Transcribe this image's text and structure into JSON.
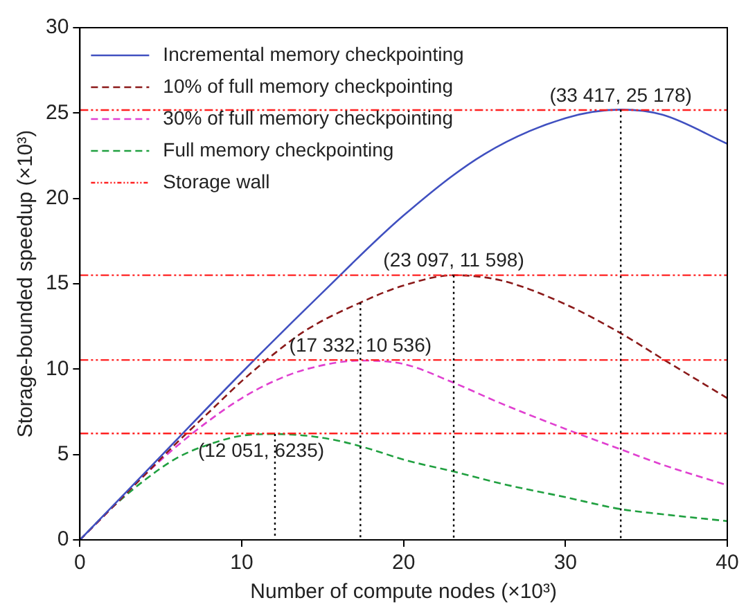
{
  "chart_data": {
    "type": "line",
    "xlabel": "Number of compute nodes (×10³)",
    "ylabel": "Storage-bounded speedup (×10³)",
    "xlim": [
      0,
      40
    ],
    "ylim": [
      0,
      30
    ],
    "xticks": [
      0,
      10,
      20,
      30,
      40
    ],
    "yticks": [
      0,
      5,
      10,
      15,
      20,
      25,
      30
    ],
    "grid": false,
    "legend": "top left",
    "marker": "none",
    "series": [
      {
        "name": "Incremental memory checkpointing",
        "color": "#4050c0",
        "line_style": "solid",
        "x": [
          0,
          5,
          10,
          15,
          20,
          25,
          30,
          33.417,
          36,
          40
        ],
        "values": [
          0,
          4.9,
          9.8,
          14.5,
          19.0,
          22.6,
          24.7,
          25.2,
          24.9,
          23.2
        ]
      },
      {
        "name": "10% of full memory checkpointing",
        "color": "#8b1a1a",
        "line_style": "dashed",
        "x": [
          0,
          2,
          4,
          6,
          8,
          10,
          12,
          14,
          17.332,
          20,
          23.097,
          26,
          30,
          33.417,
          36,
          40
        ],
        "values": [
          0,
          1.9,
          3.8,
          5.7,
          7.5,
          9.3,
          10.9,
          12.3,
          13.9,
          14.9,
          15.5,
          15.2,
          13.8,
          12.1,
          10.6,
          8.3
        ]
      },
      {
        "name": "30% of full memory checkpointing",
        "color": "#e040d0",
        "line_style": "dashed",
        "x": [
          0,
          2,
          4,
          6,
          8,
          10,
          12,
          14,
          17.332,
          20,
          23.097,
          26,
          30,
          33.417,
          36,
          40
        ],
        "values": [
          0,
          1.9,
          3.8,
          5.5,
          7.0,
          8.3,
          9.3,
          10.0,
          10.5,
          10.3,
          9.2,
          8.0,
          6.5,
          5.3,
          4.4,
          3.2
        ]
      },
      {
        "name": "Full memory checkpointing",
        "color": "#20a040",
        "line_style": "dashed",
        "x": [
          0,
          2,
          4,
          6,
          8,
          10,
          12.051,
          14,
          16,
          18,
          20,
          23.097,
          26,
          30,
          33.417,
          36,
          40
        ],
        "values": [
          0,
          1.9,
          3.5,
          4.8,
          5.6,
          6.1,
          6.2,
          6.1,
          5.8,
          5.3,
          4.7,
          4.0,
          3.3,
          2.5,
          1.8,
          1.5,
          1.1
        ]
      }
    ],
    "ref_lines": [
      {
        "axis": "y",
        "value": 25.178,
        "label": "Storage wall",
        "color": "#ff2020",
        "line_style": "dashed"
      },
      {
        "axis": "y",
        "value": 15.5,
        "color": "#ff2020",
        "line_style": "dashed"
      },
      {
        "axis": "y",
        "value": 10.536,
        "color": "#ff2020",
        "line_style": "dashed"
      },
      {
        "axis": "y",
        "value": 6.235,
        "color": "#ff2020",
        "line_style": "dashed"
      },
      {
        "axis": "x",
        "value": 33.417,
        "color": "#000000",
        "line_style": "dotted"
      },
      {
        "axis": "x",
        "value": 23.097,
        "color": "#000000",
        "line_style": "dotted"
      },
      {
        "axis": "x",
        "value": 17.332,
        "color": "#000000",
        "line_style": "dotted"
      },
      {
        "axis": "x",
        "value": 12.051,
        "color": "#000000",
        "line_style": "dotted"
      }
    ],
    "annotations": [
      {
        "text": "(33 417, 25 178)",
        "x": 33.417,
        "y": 25.178
      },
      {
        "text": "(23 097, 11 598)",
        "x": 23.097,
        "y": 15.5
      },
      {
        "text": "(17 332, 10 536)",
        "x": 17.332,
        "y": 10.536
      },
      {
        "text": "(12 051, 6235)",
        "x": 12.051,
        "y": 6.235
      }
    ]
  }
}
